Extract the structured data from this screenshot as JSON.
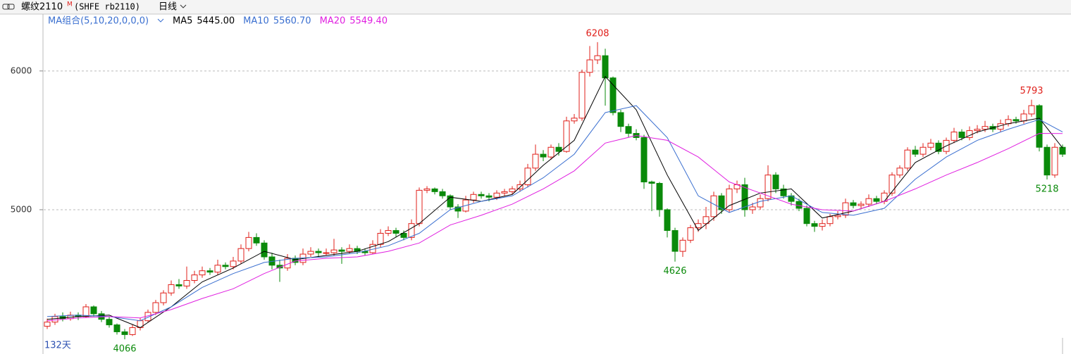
{
  "chart_data": {
    "type": "candlestick",
    "symbol": "螺纹2110",
    "badge": "M",
    "code": "(SHFE rb2110)",
    "period": "日线",
    "indicator": "MA组合(5,10,20,0,0,0)",
    "day_count": "132天",
    "up_color": "#e0201b",
    "down_color": "#0a8a0a",
    "ylim": [
      3960,
      6410
    ],
    "yticks": [
      5000,
      6000
    ],
    "grid": true,
    "ohlc": [
      [
        4160,
        4215,
        4140,
        4190
      ],
      [
        4190,
        4250,
        4170,
        4230
      ],
      [
        4230,
        4260,
        4195,
        4215
      ],
      [
        4215,
        4265,
        4200,
        4240
      ],
      [
        4240,
        4260,
        4205,
        4230
      ],
      [
        4230,
        4320,
        4220,
        4300
      ],
      [
        4300,
        4310,
        4230,
        4250
      ],
      [
        4250,
        4270,
        4190,
        4210
      ],
      [
        4210,
        4230,
        4150,
        4170
      ],
      [
        4170,
        4180,
        4100,
        4120
      ],
      [
        4120,
        4140,
        4066,
        4100
      ],
      [
        4100,
        4170,
        4090,
        4150
      ],
      [
        4150,
        4220,
        4130,
        4200
      ],
      [
        4200,
        4280,
        4190,
        4260
      ],
      [
        4260,
        4350,
        4240,
        4330
      ],
      [
        4330,
        4420,
        4310,
        4400
      ],
      [
        4400,
        4490,
        4380,
        4460
      ],
      [
        4460,
        4500,
        4430,
        4450
      ],
      [
        4450,
        4590,
        4430,
        4490
      ],
      [
        4490,
        4560,
        4470,
        4530
      ],
      [
        4530,
        4590,
        4510,
        4560
      ],
      [
        4560,
        4580,
        4530,
        4550
      ],
      [
        4550,
        4640,
        4530,
        4600
      ],
      [
        4600,
        4620,
        4570,
        4590
      ],
      [
        4590,
        4660,
        4570,
        4630
      ],
      [
        4630,
        4750,
        4610,
        4720
      ],
      [
        4720,
        4840,
        4700,
        4800
      ],
      [
        4800,
        4830,
        4740,
        4760
      ],
      [
        4760,
        4780,
        4640,
        4660
      ],
      [
        4660,
        4690,
        4570,
        4600
      ],
      [
        4600,
        4640,
        4480,
        4580
      ],
      [
        4580,
        4680,
        4560,
        4650
      ],
      [
        4650,
        4670,
        4600,
        4620
      ],
      [
        4620,
        4720,
        4600,
        4680
      ],
      [
        4680,
        4730,
        4660,
        4700
      ],
      [
        4700,
        4720,
        4660,
        4690
      ],
      [
        4690,
        4720,
        4670,
        4690
      ],
      [
        4690,
        4790,
        4670,
        4710
      ],
      [
        4710,
        4730,
        4610,
        4700
      ],
      [
        4700,
        4750,
        4680,
        4720
      ],
      [
        4720,
        4740,
        4680,
        4700
      ],
      [
        4700,
        4720,
        4670,
        4690
      ],
      [
        4690,
        4780,
        4680,
        4750
      ],
      [
        4750,
        4860,
        4730,
        4830
      ],
      [
        4830,
        4880,
        4810,
        4850
      ],
      [
        4850,
        4870,
        4800,
        4830
      ],
      [
        4830,
        4850,
        4780,
        4800
      ],
      [
        4800,
        4930,
        4780,
        4900
      ],
      [
        4900,
        5160,
        4880,
        5140
      ],
      [
        5140,
        5170,
        5120,
        5150
      ],
      [
        5150,
        5160,
        5110,
        5130
      ],
      [
        5130,
        5150,
        5080,
        5100
      ],
      [
        5100,
        5110,
        5000,
        5020
      ],
      [
        5020,
        5040,
        4940,
        4990
      ],
      [
        4990,
        5100,
        4980,
        5070
      ],
      [
        5070,
        5130,
        5050,
        5110
      ],
      [
        5110,
        5130,
        5080,
        5100
      ],
      [
        5100,
        5120,
        5060,
        5090
      ],
      [
        5090,
        5140,
        5070,
        5120
      ],
      [
        5120,
        5150,
        5100,
        5130
      ],
      [
        5130,
        5170,
        5110,
        5150
      ],
      [
        5150,
        5210,
        5130,
        5180
      ],
      [
        5180,
        5330,
        5160,
        5300
      ],
      [
        5300,
        5470,
        5280,
        5400
      ],
      [
        5400,
        5430,
        5350,
        5380
      ],
      [
        5380,
        5470,
        5360,
        5450
      ],
      [
        5450,
        5480,
        5390,
        5420
      ],
      [
        5420,
        5670,
        5410,
        5640
      ],
      [
        5640,
        5690,
        5620,
        5660
      ],
      [
        5660,
        6010,
        5640,
        5990
      ],
      [
        5990,
        6180,
        5960,
        6080
      ],
      [
        6080,
        6208,
        6050,
        6110
      ],
      [
        6110,
        6160,
        5750,
        5950
      ],
      [
        5950,
        5960,
        5680,
        5700
      ],
      [
        5700,
        5720,
        5560,
        5600
      ],
      [
        5600,
        5620,
        5520,
        5550
      ],
      [
        5550,
        5580,
        5500,
        5520
      ],
      [
        5520,
        5540,
        5150,
        5200
      ],
      [
        5200,
        5210,
        4990,
        5190
      ],
      [
        5190,
        5200,
        4950,
        5000
      ],
      [
        5000,
        5010,
        4800,
        4850
      ],
      [
        4850,
        4870,
        4626,
        4700
      ],
      [
        4700,
        4800,
        4660,
        4780
      ],
      [
        4780,
        4890,
        4760,
        4870
      ],
      [
        4870,
        4930,
        4840,
        4900
      ],
      [
        4900,
        5020,
        4860,
        4950
      ],
      [
        4950,
        5130,
        4920,
        5100
      ],
      [
        5100,
        5120,
        4970,
        5000
      ],
      [
        5000,
        5180,
        4980,
        5150
      ],
      [
        5150,
        5210,
        5120,
        5180
      ],
      [
        5180,
        5230,
        4950,
        5000
      ],
      [
        5000,
        5050,
        4970,
        5020
      ],
      [
        5020,
        5110,
        5000,
        5080
      ],
      [
        5080,
        5320,
        5060,
        5250
      ],
      [
        5250,
        5270,
        5120,
        5150
      ],
      [
        5150,
        5180,
        5080,
        5100
      ],
      [
        5100,
        5120,
        5030,
        5060
      ],
      [
        5060,
        5080,
        4990,
        5010
      ],
      [
        5010,
        5030,
        4880,
        4900
      ],
      [
        4900,
        4920,
        4840,
        4880
      ],
      [
        4880,
        4930,
        4850,
        4900
      ],
      [
        4900,
        4970,
        4880,
        4950
      ],
      [
        4950,
        4990,
        4930,
        4960
      ],
      [
        4960,
        5080,
        4940,
        5050
      ],
      [
        5050,
        5070,
        5010,
        5030
      ],
      [
        5030,
        5060,
        5010,
        5040
      ],
      [
        5040,
        5110,
        5020,
        5080
      ],
      [
        5080,
        5100,
        5040,
        5060
      ],
      [
        5060,
        5140,
        5040,
        5120
      ],
      [
        5120,
        5270,
        5100,
        5250
      ],
      [
        5250,
        5320,
        5230,
        5300
      ],
      [
        5300,
        5450,
        5280,
        5430
      ],
      [
        5430,
        5460,
        5380,
        5400
      ],
      [
        5400,
        5480,
        5380,
        5450
      ],
      [
        5450,
        5510,
        5430,
        5480
      ],
      [
        5480,
        5500,
        5400,
        5420
      ],
      [
        5420,
        5520,
        5400,
        5500
      ],
      [
        5500,
        5590,
        5480,
        5560
      ],
      [
        5560,
        5580,
        5500,
        5520
      ],
      [
        5520,
        5600,
        5500,
        5570
      ],
      [
        5570,
        5610,
        5550,
        5580
      ],
      [
        5580,
        5640,
        5560,
        5600
      ],
      [
        5600,
        5620,
        5560,
        5580
      ],
      [
        5580,
        5650,
        5560,
        5620
      ],
      [
        5620,
        5680,
        5600,
        5650
      ],
      [
        5650,
        5670,
        5620,
        5640
      ],
      [
        5640,
        5720,
        5620,
        5690
      ],
      [
        5690,
        5793,
        5670,
        5750
      ],
      [
        5750,
        5760,
        5420,
        5450
      ],
      [
        5450,
        5470,
        5218,
        5250
      ],
      [
        5250,
        5480,
        5230,
        5450
      ],
      [
        5450,
        5470,
        5380,
        5400
      ]
    ],
    "annotations": [
      6208,
      4626,
      5793,
      4066,
      5218
    ],
    "series": [
      {
        "name": "MA5",
        "color": "#000000",
        "last_value": 5445,
        "value_label": "5445.00",
        "x": [
          0,
          4,
          8,
          12,
          16,
          20,
          24,
          28,
          32,
          36,
          40,
          44,
          48,
          52,
          56,
          60,
          64,
          68,
          72,
          76,
          80,
          84,
          88,
          92,
          96,
          100,
          104,
          108,
          112,
          116,
          120,
          124,
          128,
          131
        ],
        "values": [
          4210,
          4230,
          4240,
          4150,
          4300,
          4480,
          4580,
          4700,
          4640,
          4670,
          4700,
          4770,
          4900,
          5090,
          5060,
          5110,
          5320,
          5500,
          5960,
          5720,
          5250,
          4850,
          5030,
          5120,
          5150,
          4940,
          4990,
          5060,
          5340,
          5460,
          5560,
          5620,
          5660,
          5445
        ]
      },
      {
        "name": "MA10",
        "color": "#3a6fd0",
        "last_value": 5560.7,
        "value_label": "5560.70",
        "x": [
          0,
          4,
          8,
          12,
          16,
          20,
          24,
          28,
          32,
          36,
          40,
          44,
          48,
          52,
          56,
          60,
          64,
          68,
          72,
          76,
          80,
          84,
          88,
          92,
          96,
          100,
          104,
          108,
          112,
          116,
          120,
          124,
          128,
          131
        ],
        "values": [
          4230,
          4240,
          4230,
          4200,
          4300,
          4440,
          4540,
          4620,
          4650,
          4660,
          4690,
          4740,
          4830,
          5000,
          5060,
          5100,
          5230,
          5400,
          5700,
          5750,
          5520,
          5100,
          4980,
          5060,
          5100,
          4980,
          4960,
          5010,
          5220,
          5380,
          5500,
          5580,
          5650,
          5560.7
        ]
      },
      {
        "name": "MA20",
        "color": "#e020e0",
        "last_value": 5549.4,
        "value_label": "5549.40",
        "x": [
          0,
          4,
          8,
          12,
          16,
          20,
          24,
          28,
          32,
          36,
          40,
          44,
          48,
          52,
          56,
          60,
          64,
          68,
          72,
          76,
          80,
          84,
          88,
          92,
          96,
          100,
          104,
          108,
          112,
          116,
          120,
          124,
          128,
          131
        ],
        "values": [
          4200,
          4220,
          4230,
          4220,
          4280,
          4360,
          4430,
          4540,
          4630,
          4650,
          4660,
          4700,
          4760,
          4890,
          4960,
          5040,
          5150,
          5280,
          5480,
          5535,
          5500,
          5380,
          5200,
          5120,
          5040,
          5000,
          4990,
          5060,
          5150,
          5250,
          5340,
          5440,
          5550,
          5549.4
        ]
      }
    ]
  }
}
